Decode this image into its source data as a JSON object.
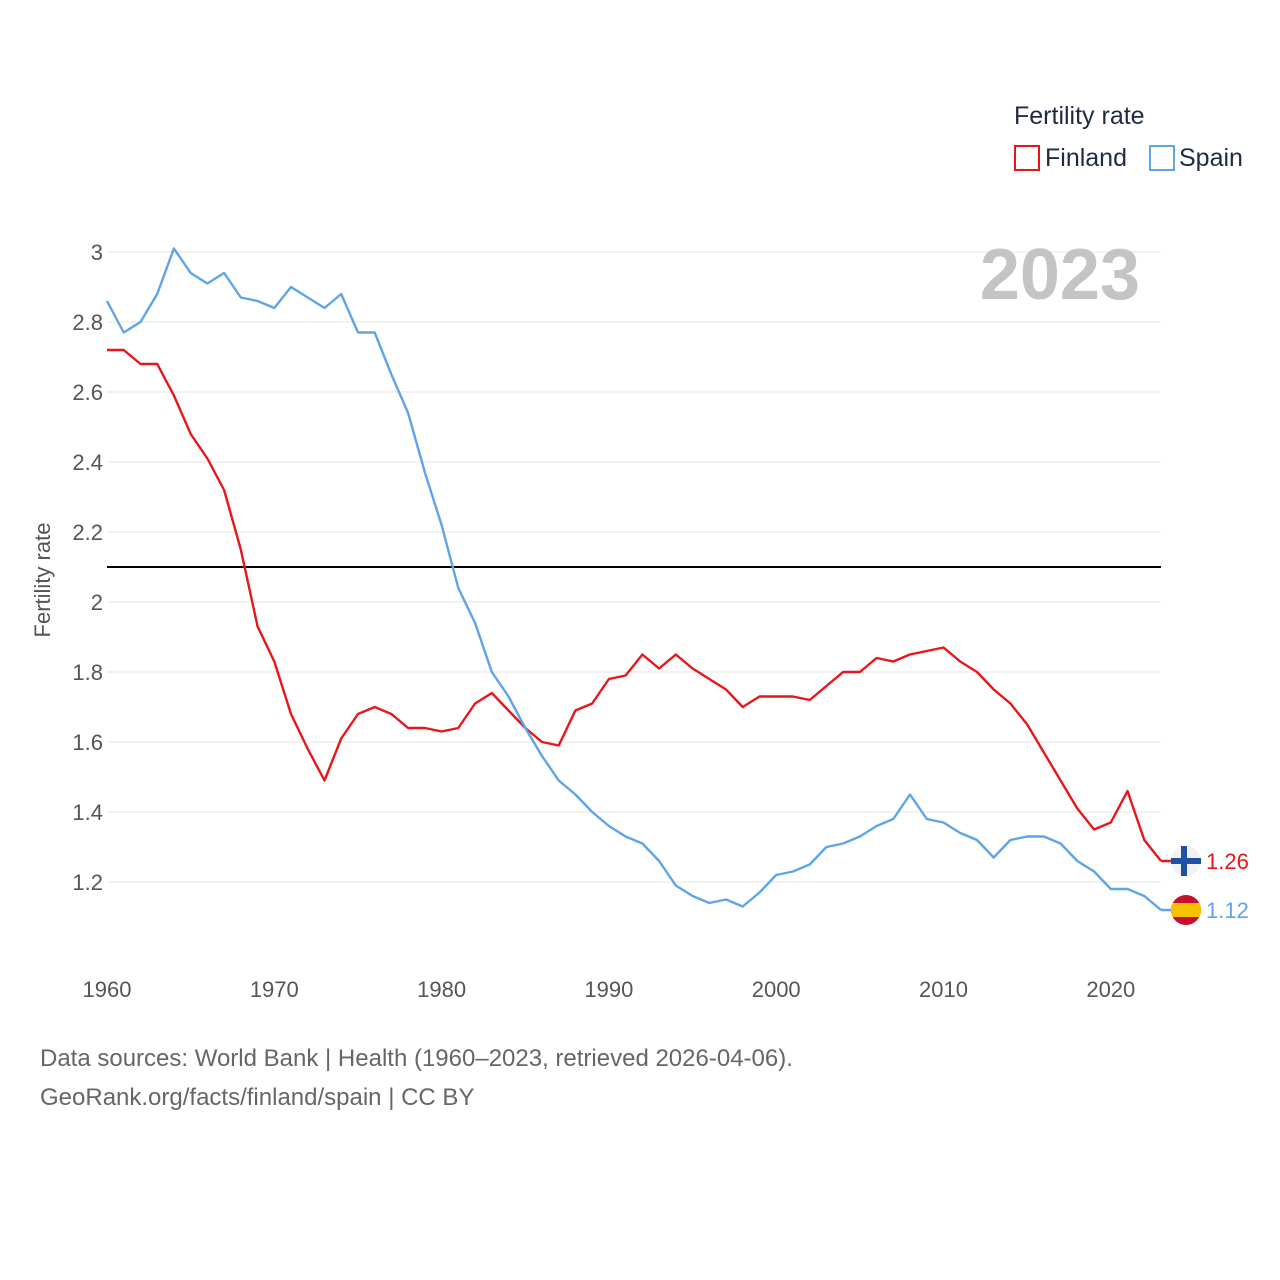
{
  "chart_data": {
    "type": "line",
    "ylabel": "Fertility rate",
    "ylim": [
      1.2,
      3.0
    ],
    "yticks": [
      3,
      2.8,
      2.6,
      2.4,
      2.2,
      2,
      1.8,
      1.6,
      1.4,
      1.2
    ],
    "ytick_labels": [
      "3",
      "2.8",
      "2.6",
      "2.4",
      "2.2",
      "2",
      "1.8",
      "1.6",
      "1.4",
      "1.2"
    ],
    "xlim": [
      1960,
      2023
    ],
    "xticks": [
      1960,
      1970,
      1980,
      1990,
      2000,
      2010,
      2020
    ],
    "xtick_labels": [
      "1960",
      "1970",
      "1980",
      "1990",
      "2000",
      "2010",
      "2020"
    ],
    "year_label": "2023",
    "reference_line": {
      "value": 2.1,
      "color": "#000000"
    },
    "legend": {
      "title": "Fertility rate",
      "position": "top-right"
    },
    "x": [
      1960,
      1961,
      1962,
      1963,
      1964,
      1965,
      1966,
      1967,
      1968,
      1969,
      1970,
      1971,
      1972,
      1973,
      1974,
      1975,
      1976,
      1977,
      1978,
      1979,
      1980,
      1981,
      1982,
      1983,
      1984,
      1985,
      1986,
      1987,
      1988,
      1989,
      1990,
      1991,
      1992,
      1993,
      1994,
      1995,
      1996,
      1997,
      1998,
      1999,
      2000,
      2001,
      2002,
      2003,
      2004,
      2005,
      2006,
      2007,
      2008,
      2009,
      2010,
      2011,
      2012,
      2013,
      2014,
      2015,
      2016,
      2017,
      2018,
      2019,
      2020,
      2021,
      2022,
      2023
    ],
    "series": [
      {
        "name": "Finland",
        "color": "#e8161b",
        "end_label": "1.26",
        "values": [
          2.72,
          2.72,
          2.68,
          2.68,
          2.59,
          2.48,
          2.41,
          2.32,
          2.15,
          1.93,
          1.83,
          1.68,
          1.58,
          1.49,
          1.61,
          1.68,
          1.7,
          1.68,
          1.64,
          1.64,
          1.63,
          1.64,
          1.71,
          1.74,
          1.69,
          1.64,
          1.6,
          1.59,
          1.69,
          1.71,
          1.78,
          1.79,
          1.85,
          1.81,
          1.85,
          1.81,
          1.78,
          1.75,
          1.7,
          1.73,
          1.73,
          1.73,
          1.72,
          1.76,
          1.8,
          1.8,
          1.84,
          1.83,
          1.85,
          1.86,
          1.87,
          1.83,
          1.8,
          1.75,
          1.71,
          1.65,
          1.57,
          1.49,
          1.41,
          1.35,
          1.37,
          1.46,
          1.32,
          1.26
        ]
      },
      {
        "name": "Spain",
        "color": "#5ea4e8",
        "end_label": "1.12",
        "values": [
          2.86,
          2.77,
          2.8,
          2.88,
          3.01,
          2.94,
          2.91,
          2.94,
          2.87,
          2.86,
          2.84,
          2.9,
          2.87,
          2.84,
          2.88,
          2.77,
          2.77,
          2.65,
          2.54,
          2.37,
          2.22,
          2.04,
          1.94,
          1.8,
          1.73,
          1.64,
          1.56,
          1.49,
          1.45,
          1.4,
          1.36,
          1.33,
          1.31,
          1.26,
          1.19,
          1.16,
          1.14,
          1.15,
          1.13,
          1.17,
          1.22,
          1.23,
          1.25,
          1.3,
          1.31,
          1.33,
          1.36,
          1.38,
          1.45,
          1.38,
          1.37,
          1.34,
          1.32,
          1.27,
          1.32,
          1.33,
          1.33,
          1.31,
          1.26,
          1.23,
          1.18,
          1.18,
          1.16,
          1.12
        ]
      }
    ]
  },
  "footer": {
    "sources": "Data sources: World Bank | Health (1960–2023, retrieved 2026-04-06).",
    "credit": "GeoRank.org/facts/finland/spain | CC BY"
  }
}
